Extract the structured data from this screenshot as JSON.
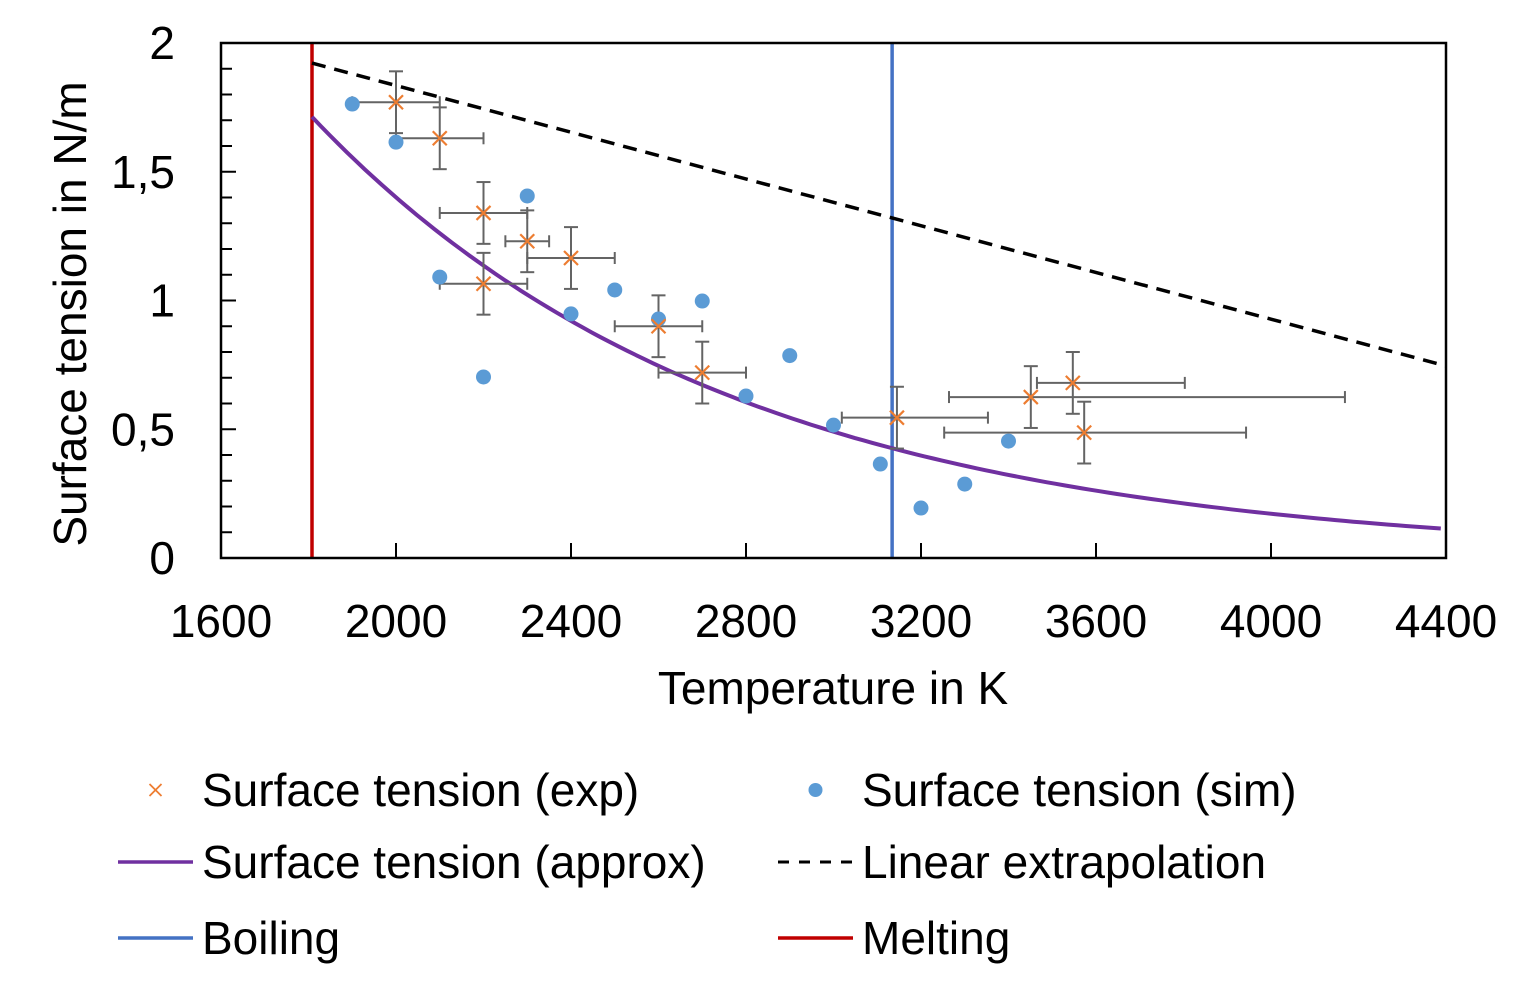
{
  "chart_data": {
    "type": "scatter",
    "title": "",
    "xlabel": "Temperature in K",
    "ylabel": "Surface tension in N/m",
    "xlim": [
      1600,
      4400
    ],
    "ylim": [
      0,
      2
    ],
    "x_ticks": [
      1600,
      2000,
      2400,
      2800,
      3200,
      3600,
      4000,
      4400
    ],
    "x_tick_labels": [
      "1600",
      "2000",
      "2400",
      "2800",
      "3200",
      "3600",
      "4000",
      "4400"
    ],
    "y_ticks": [
      0,
      0.5,
      1,
      1.5,
      2
    ],
    "y_tick_labels": [
      "0",
      "0,5",
      "1",
      "1,5",
      "2"
    ],
    "y_minor_step": 0.1,
    "grid": false,
    "legend_position": "bottom",
    "colors": {
      "exp": "#ED7D31",
      "sim": "#5B9BD5",
      "approx": "#7030A0",
      "linear": "#000000",
      "boiling": "#4472C4",
      "melting": "#C00000",
      "errorbar": "#646464"
    },
    "series": [
      {
        "name": "Surface tension (exp)",
        "kind": "scatter-x-with-errorbars",
        "points": [
          {
            "x": 2000,
            "y": 1.77,
            "xerr_minus": 100,
            "xerr_plus": 100,
            "yerr": 0.12
          },
          {
            "x": 2100,
            "y": 1.63,
            "xerr_minus": 100,
            "xerr_plus": 100,
            "yerr": 0.12
          },
          {
            "x": 2200,
            "y": 1.34,
            "xerr_minus": 100,
            "xerr_plus": 100,
            "yerr": 0.12
          },
          {
            "x": 2300,
            "y": 1.23,
            "xerr_minus": 50,
            "xerr_plus": 50,
            "yerr": 0.12
          },
          {
            "x": 2400,
            "y": 1.165,
            "xerr_minus": 100,
            "xerr_plus": 100,
            "yerr": 0.12
          },
          {
            "x": 2200,
            "y": 1.065,
            "xerr_minus": 100,
            "xerr_plus": 100,
            "yerr": 0.12
          },
          {
            "x": 2600,
            "y": 0.9,
            "xerr_minus": 100,
            "xerr_plus": 100,
            "yerr": 0.12
          },
          {
            "x": 2700,
            "y": 0.72,
            "xerr_minus": 100,
            "xerr_plus": 100,
            "yerr": 0.12
          },
          {
            "x": 3145,
            "y": 0.545,
            "xerr_minus": 126,
            "xerr_plus": 208,
            "yerr": 0.12
          },
          {
            "x": 3451,
            "y": 0.625,
            "xerr_minus": 187,
            "xerr_plus": 718,
            "yerr": 0.12
          },
          {
            "x": 3547,
            "y": 0.68,
            "xerr_minus": 82,
            "xerr_plus": 256,
            "yerr": 0.12
          },
          {
            "x": 3573,
            "y": 0.487,
            "xerr_minus": 320,
            "xerr_plus": 370,
            "yerr": 0.12
          }
        ]
      },
      {
        "name": "Surface tension (sim)",
        "kind": "scatter-dot",
        "points": [
          {
            "x": 1900,
            "y": 1.763
          },
          {
            "x": 2000,
            "y": 1.615
          },
          {
            "x": 2100,
            "y": 1.091
          },
          {
            "x": 2200,
            "y": 0.703
          },
          {
            "x": 2300,
            "y": 1.406
          },
          {
            "x": 2400,
            "y": 0.948
          },
          {
            "x": 2500,
            "y": 1.041
          },
          {
            "x": 2600,
            "y": 0.928
          },
          {
            "x": 2700,
            "y": 0.998
          },
          {
            "x": 2800,
            "y": 0.629
          },
          {
            "x": 2900,
            "y": 0.786
          },
          {
            "x": 3000,
            "y": 0.516
          },
          {
            "x": 3107,
            "y": 0.365
          },
          {
            "x": 3200,
            "y": 0.194
          },
          {
            "x": 3300,
            "y": 0.287
          },
          {
            "x": 3400,
            "y": 0.454
          }
        ]
      },
      {
        "name": "Surface tension (approx)",
        "kind": "line",
        "model": "exponential",
        "x": [
          1808,
          2000,
          2200,
          2400,
          2600,
          2800,
          3000,
          3200,
          3400,
          3600,
          3800,
          4000,
          4200,
          4400
        ],
        "values": [
          1.713,
          1.403,
          1.137,
          0.922,
          0.748,
          0.606,
          0.491,
          0.399,
          0.323,
          0.262,
          0.212,
          0.172,
          0.14,
          0.113
        ]
      },
      {
        "name": "Linear extrapolation",
        "kind": "dashed-line",
        "x": [
          1808,
          4400
        ],
        "values": [
          1.922,
          0.746
        ]
      },
      {
        "name": "Boiling",
        "kind": "vertical-line",
        "x_value": 3134
      },
      {
        "name": "Melting",
        "kind": "vertical-line",
        "x_value": 1808
      }
    ],
    "legend": [
      {
        "label": "Surface tension (exp)",
        "marker": "x",
        "series": "exp"
      },
      {
        "label": "Surface tension (sim)",
        "marker": "dot",
        "series": "sim"
      },
      {
        "label": "Surface tension (approx)",
        "marker": "line",
        "series": "approx"
      },
      {
        "label": "Linear extrapolation",
        "marker": "dashed",
        "series": "linear"
      },
      {
        "label": "Boiling",
        "marker": "line",
        "series": "boiling"
      },
      {
        "label": "Melting",
        "marker": "line",
        "series": "melting"
      }
    ]
  }
}
